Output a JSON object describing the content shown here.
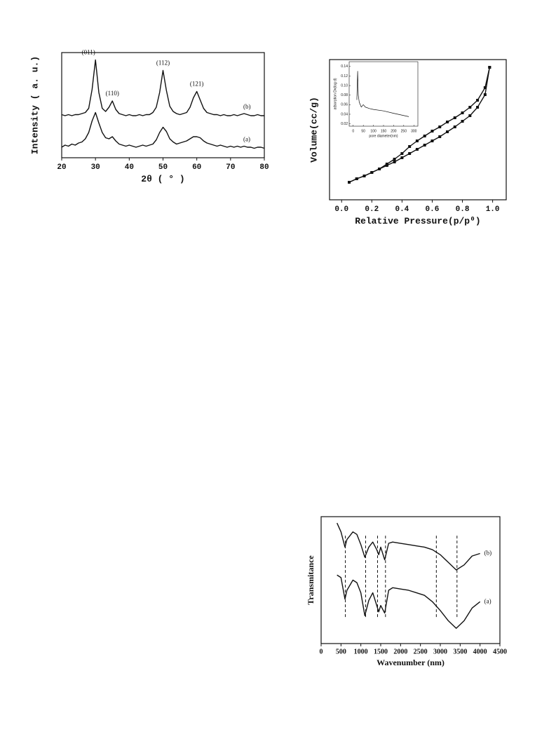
{
  "chart_data": [
    {
      "type": "line",
      "x": [
        20,
        21,
        22,
        23,
        24,
        25,
        26,
        27,
        28,
        29,
        30,
        31,
        32,
        33,
        34,
        35,
        36,
        37,
        38,
        39,
        40,
        41,
        42,
        43,
        44,
        45,
        46,
        47,
        48,
        49,
        50,
        51,
        52,
        53,
        54,
        55,
        56,
        57,
        58,
        59,
        60,
        61,
        62,
        63,
        64,
        65,
        66,
        67,
        68,
        69,
        70,
        71,
        72,
        73,
        74,
        75,
        76,
        77,
        78,
        79,
        80
      ],
      "series": [
        {
          "name": "(b)",
          "color": "#111111",
          "values": [
            41,
            40,
            41,
            40,
            41,
            41,
            42,
            43,
            47,
            65,
            93,
            62,
            47,
            44,
            48,
            54,
            46,
            42,
            41,
            40,
            41,
            40,
            40,
            41,
            40,
            41,
            41,
            43,
            48,
            62,
            83,
            64,
            49,
            44,
            42,
            41,
            42,
            43,
            48,
            57,
            63,
            55,
            47,
            43,
            42,
            41,
            41,
            40,
            41,
            40,
            40,
            41,
            40,
            41,
            42,
            41,
            40,
            40,
            41,
            40,
            40
          ]
        },
        {
          "name": "(a)",
          "color": "#111111",
          "values": [
            10,
            12,
            11,
            13,
            12,
            14,
            15,
            18,
            24,
            35,
            43,
            33,
            24,
            19,
            18,
            20,
            16,
            13,
            12,
            11,
            12,
            11,
            10,
            11,
            12,
            11,
            12,
            13,
            17,
            24,
            29,
            25,
            18,
            15,
            13,
            14,
            15,
            16,
            18,
            20,
            20,
            19,
            16,
            14,
            13,
            12,
            11,
            12,
            11,
            10,
            11,
            10,
            11,
            10,
            11,
            10,
            10,
            9,
            10,
            10,
            9
          ]
        }
      ],
      "xlim": [
        20,
        80
      ],
      "ylim": [
        0,
        100
      ],
      "xticks": [
        20,
        30,
        40,
        50,
        60,
        70,
        80
      ],
      "xlabel": "2θ ( ° )",
      "ylabel": "Intensity ( a. u.)",
      "annotations": [
        {
          "text": "(011)",
          "x": 30
        },
        {
          "text": "(110)",
          "x": 35
        },
        {
          "text": "(112)",
          "x": 50
        },
        {
          "text": "(121)",
          "x": 60
        }
      ]
    },
    {
      "type": "line",
      "x": [
        0.05,
        0.1,
        0.15,
        0.2,
        0.25,
        0.3,
        0.35,
        0.4,
        0.45,
        0.5,
        0.55,
        0.6,
        0.65,
        0.7,
        0.75,
        0.8,
        0.85,
        0.9,
        0.95,
        0.98
      ],
      "series": [
        {
          "color": "#111111",
          "values": [
            12.5,
            15,
            17,
            19.5,
            22,
            24.5,
            27,
            30,
            33,
            36,
            39,
            42,
            45,
            48.5,
            52,
            56,
            60,
            66,
            75,
            94.5
          ]
        },
        {
          "color": "#111111",
          "values": [
            12.5,
            15,
            17,
            19.5,
            22,
            25.5,
            29,
            33,
            38,
            42,
            45.5,
            49,
            52,
            55.5,
            58.5,
            62,
            66,
            71,
            80,
            94.5
          ]
        }
      ],
      "markers": true,
      "xlim": [
        -0.08,
        1.09
      ],
      "ylim": [
        0,
        100
      ],
      "xticks": [
        {
          "value": 0,
          "label": "0.0"
        },
        0.2,
        0.4,
        0.6,
        0.8,
        {
          "value": 1,
          "label": "1.0"
        }
      ],
      "xlabel": "Relative Pressure(p/p⁰)",
      "ylabel": "Volume(cc/g)"
    },
    {
      "type": "line",
      "x": [
        18,
        20,
        22,
        25,
        30,
        40,
        50,
        60,
        80,
        100,
        150,
        200,
        275
      ],
      "series": [
        {
          "color": "#111111",
          "values": [
            0.07,
            0.1,
            0.13,
            0.08,
            0.065,
            0.055,
            0.06,
            0.055,
            0.052,
            0.05,
            0.047,
            0.042,
            0.035
          ]
        }
      ],
      "xlim": [
        -20,
        320
      ],
      "ylim": [
        0.015,
        0.15
      ],
      "xticks": [
        0,
        50,
        100,
        150,
        200,
        250,
        300
      ],
      "yticks": [
        0.02,
        0.04,
        0.06,
        0.08,
        {
          "value": 0.1,
          "label": "0.10"
        },
        0.12,
        0.14
      ],
      "xlabel": "pore diameter(nm)",
      "ylabel": "adsorption Dv(log d)"
    },
    {
      "type": "line",
      "x": [
        400,
        500,
        600,
        650,
        800,
        900,
        1000,
        1100,
        1200,
        1300,
        1400,
        1450,
        1500,
        1600,
        1700,
        1800,
        2000,
        2200,
        2400,
        2600,
        2800,
        3000,
        3200,
        3400,
        3600,
        3800,
        4000
      ],
      "series": [
        {
          "name": "(b)",
          "color": "#111111",
          "values": [
            95,
            88,
            76,
            82,
            88,
            86,
            78,
            68,
            76,
            80,
            74,
            70,
            76,
            66,
            79,
            80,
            79,
            78,
            77,
            76,
            74,
            70,
            64,
            58,
            62,
            69,
            71
          ]
        },
        {
          "name": "(a)",
          "color": "#111111",
          "values": [
            54,
            52,
            35,
            42,
            50,
            48,
            40,
            22,
            34,
            40,
            30,
            25,
            30,
            24,
            42,
            44,
            43,
            42,
            40,
            38,
            33,
            26,
            18,
            12,
            18,
            28,
            33
          ]
        }
      ],
      "vlines": [
        610,
        1120,
        1420,
        1620,
        2900,
        3420
      ],
      "xlim": [
        0,
        4500
      ],
      "ylim": [
        0,
        100
      ],
      "xticks": [
        0,
        500,
        1000,
        1500,
        2000,
        2500,
        3000,
        3500,
        4000,
        4500
      ],
      "xlabel": "Wavenumber (nm)",
      "ylabel": "Transmitance"
    }
  ]
}
